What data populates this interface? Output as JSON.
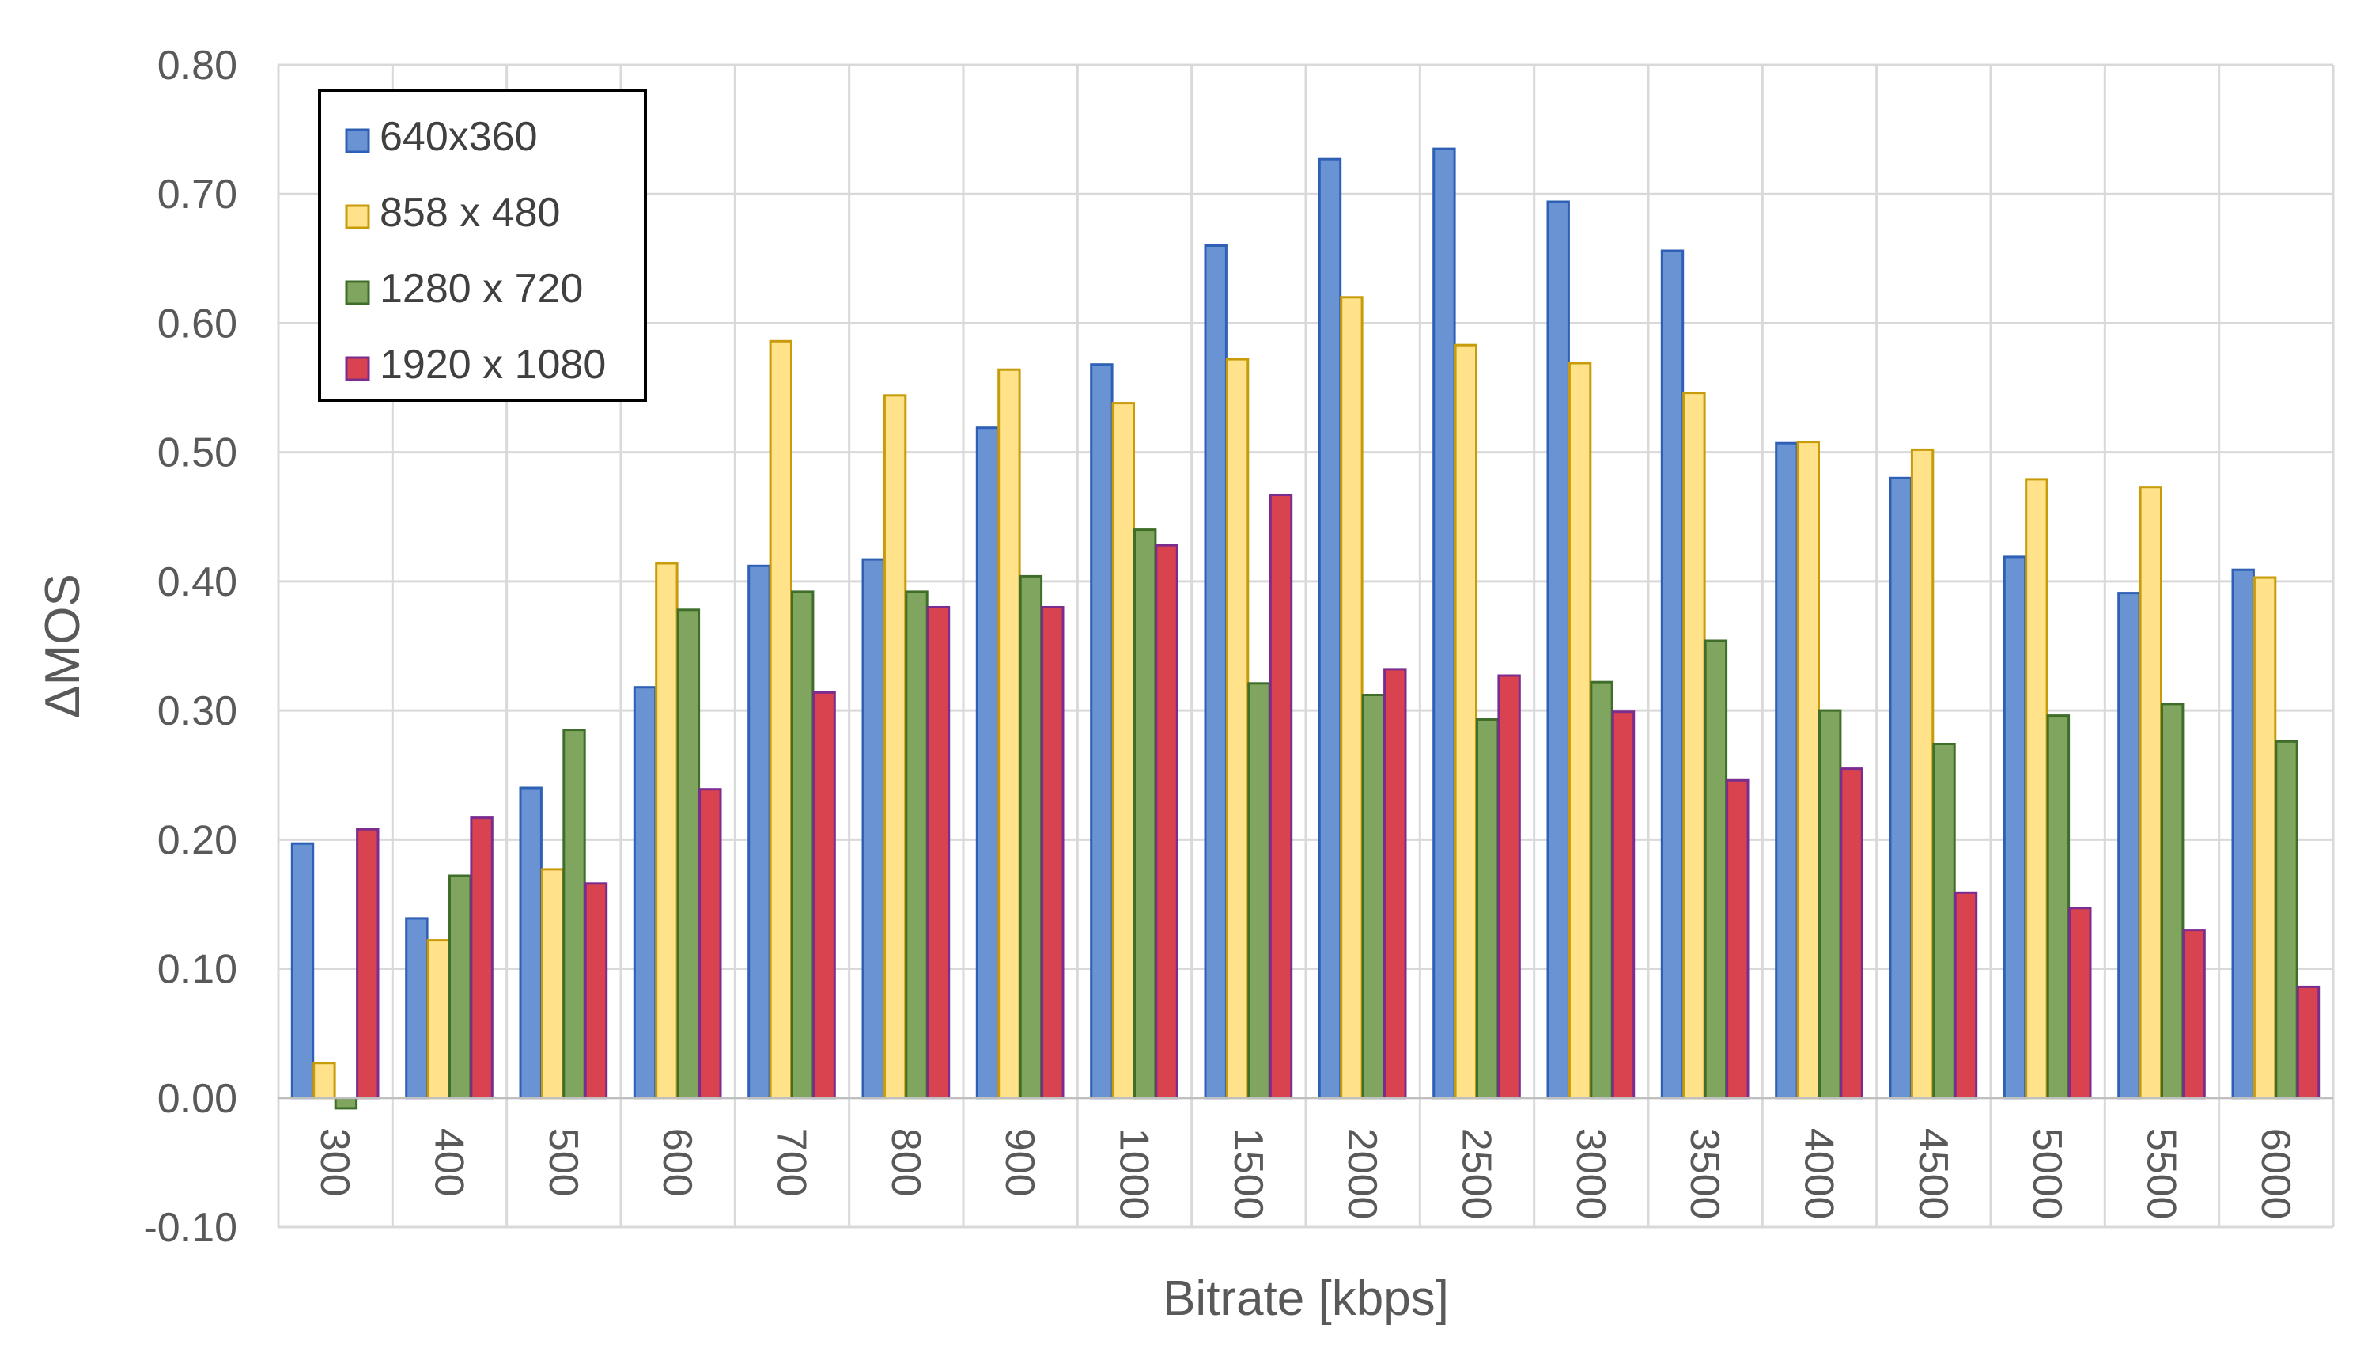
{
  "chart_data": {
    "type": "bar",
    "title": "",
    "xlabel": "Bitrate [kbps]",
    "ylabel": "ΔMOS",
    "ylim": [
      -0.1,
      0.8
    ],
    "ytick_step": 0.1,
    "yticks": [
      "-0.10",
      "0.00",
      "0.10",
      "0.20",
      "0.30",
      "0.40",
      "0.50",
      "0.60",
      "0.70",
      "0.80"
    ],
    "grid": true,
    "legend_position": "top-left",
    "categories": [
      "300",
      "400",
      "500",
      "600",
      "700",
      "800",
      "900",
      "1000",
      "1500",
      "2000",
      "2500",
      "3000",
      "3500",
      "4000",
      "4500",
      "5000",
      "5500",
      "6000"
    ],
    "series": [
      {
        "name": "640x360",
        "color": "#6A93D4",
        "edge": "#2E60B5",
        "values": [
          0.197,
          0.139,
          0.24,
          0.318,
          0.412,
          0.417,
          0.519,
          0.568,
          0.66,
          0.727,
          0.735,
          0.694,
          0.656,
          0.507,
          0.48,
          0.419,
          0.391,
          0.409
        ]
      },
      {
        "name": "858 x 480",
        "color": "#FFE28A",
        "edge": "#C89B0A",
        "values": [
          0.027,
          0.122,
          0.177,
          0.414,
          0.586,
          0.544,
          0.564,
          0.538,
          0.572,
          0.62,
          0.583,
          0.569,
          0.546,
          0.508,
          0.502,
          0.479,
          0.473,
          0.403
        ]
      },
      {
        "name": "1280 x 720",
        "color": "#7FA55E",
        "edge": "#3F6E2A",
        "values": [
          -0.008,
          0.172,
          0.285,
          0.378,
          0.392,
          0.392,
          0.404,
          0.44,
          0.321,
          0.312,
          0.293,
          0.322,
          0.354,
          0.3,
          0.274,
          0.296,
          0.305,
          0.276
        ]
      },
      {
        "name": "1920 x 1080",
        "color": "#D9434F",
        "edge": "#7B2C8F",
        "values": [
          0.208,
          0.217,
          0.166,
          0.239,
          0.314,
          0.38,
          0.38,
          0.428,
          0.467,
          0.332,
          0.327,
          0.299,
          0.246,
          0.255,
          0.159,
          0.147,
          0.13,
          0.086
        ]
      }
    ]
  }
}
